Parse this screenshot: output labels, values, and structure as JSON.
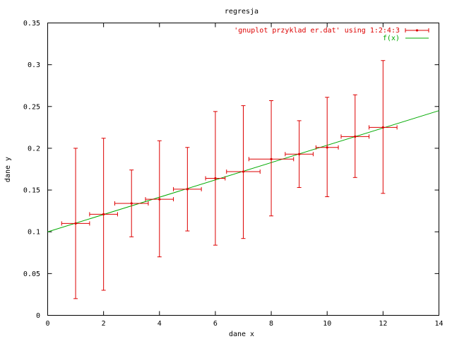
{
  "chart_data": {
    "type": "scatter",
    "title": "regresja",
    "xlabel": "dane x",
    "ylabel": "dane y",
    "xlim": [
      0,
      14
    ],
    "ylim": [
      0,
      0.35
    ],
    "xticks": [
      "0",
      "2",
      "4",
      "6",
      "8",
      "10",
      "12",
      "14"
    ],
    "yticks": [
      "0",
      "0.05",
      "0.1",
      "0.15",
      "0.2",
      "0.25",
      "0.3",
      "0.35"
    ],
    "grid": false,
    "legend_position": "top-right",
    "series": [
      {
        "name": "'gnuplot przyklad er.dat' using 1:2:4:3",
        "color": "#dd0000",
        "style": "xyerrorbars",
        "points": [
          {
            "x": 1,
            "y": 0.11,
            "xerr": 0.5,
            "ylow": 0.02,
            "yhigh": 0.2
          },
          {
            "x": 2,
            "y": 0.121,
            "xerr": 0.5,
            "ylow": 0.03,
            "yhigh": 0.212
          },
          {
            "x": 3,
            "y": 0.134,
            "xerr": 0.6,
            "ylow": 0.094,
            "yhigh": 0.174
          },
          {
            "x": 4,
            "y": 0.139,
            "xerr": 0.5,
            "ylow": 0.07,
            "yhigh": 0.209
          },
          {
            "x": 5,
            "y": 0.151,
            "xerr": 0.5,
            "ylow": 0.101,
            "yhigh": 0.201
          },
          {
            "x": 6,
            "y": 0.164,
            "xerr": 0.35,
            "ylow": 0.084,
            "yhigh": 0.244
          },
          {
            "x": 7,
            "y": 0.172,
            "xerr": 0.6,
            "ylow": 0.092,
            "yhigh": 0.251
          },
          {
            "x": 8,
            "y": 0.187,
            "xerr": 0.8,
            "ylow": 0.119,
            "yhigh": 0.257
          },
          {
            "x": 9,
            "y": 0.193,
            "xerr": 0.5,
            "ylow": 0.153,
            "yhigh": 0.233
          },
          {
            "x": 10,
            "y": 0.201,
            "xerr": 0.4,
            "ylow": 0.142,
            "yhigh": 0.261
          },
          {
            "x": 11,
            "y": 0.214,
            "xerr": 0.5,
            "ylow": 0.165,
            "yhigh": 0.264
          },
          {
            "x": 12,
            "y": 0.225,
            "xerr": 0.5,
            "ylow": 0.146,
            "yhigh": 0.305
          }
        ]
      },
      {
        "name": "f(x)",
        "color": "#00aa00",
        "style": "line",
        "x": [
          0,
          14
        ],
        "y": [
          0.1,
          0.245
        ]
      }
    ]
  }
}
